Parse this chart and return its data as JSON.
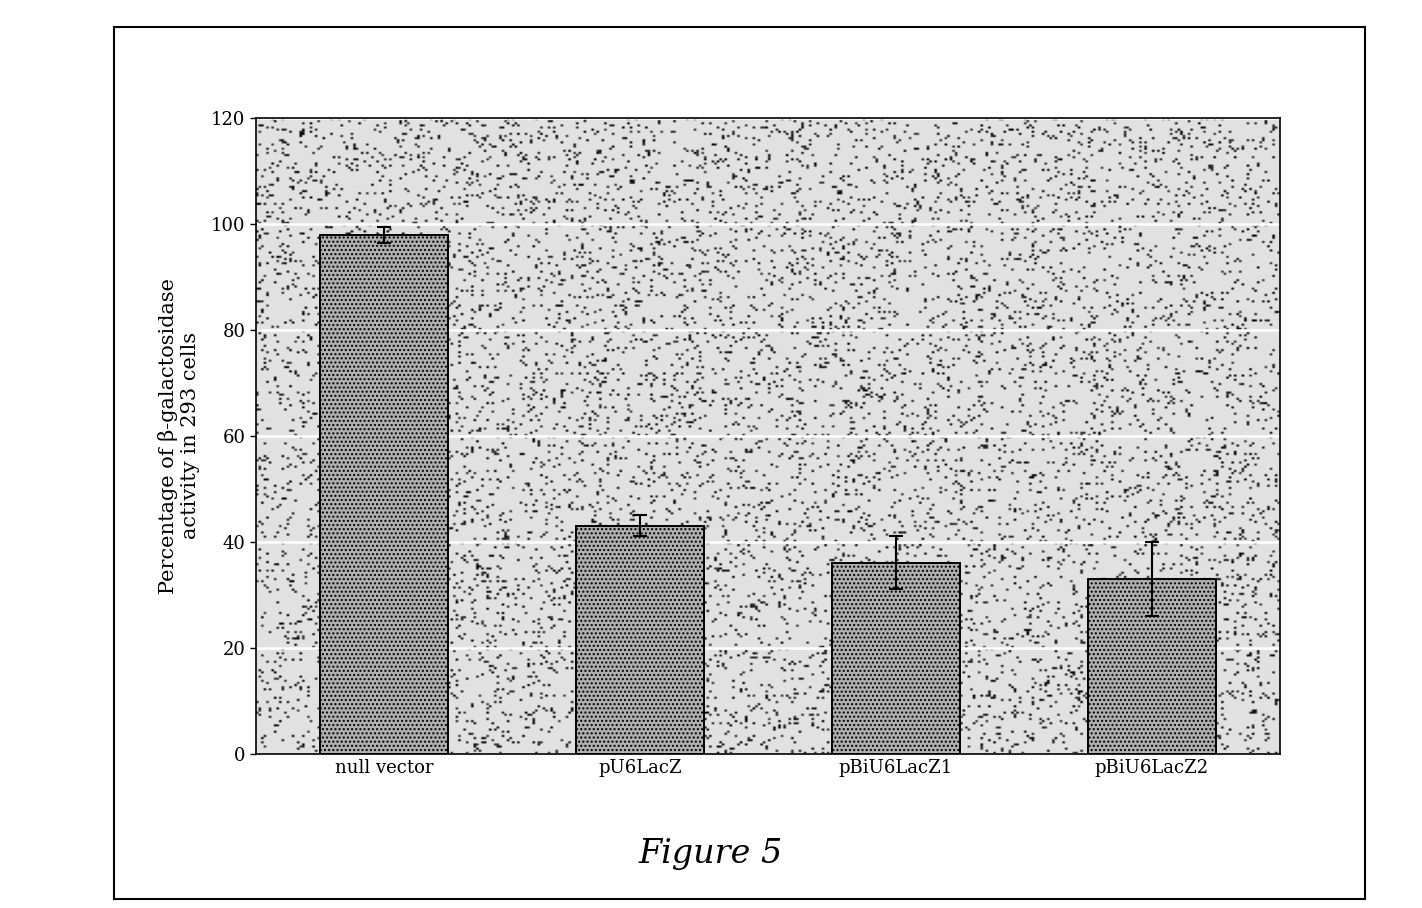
{
  "categories": [
    "null vector",
    "pU6LacZ",
    "pBiU6LacZ1",
    "pBiU6LacZ2"
  ],
  "values": [
    98,
    43,
    36,
    33
  ],
  "errors": [
    1.5,
    2.0,
    5.0,
    7.0
  ],
  "bar_color": "#b0b0b0",
  "bar_width": 0.5,
  "ylabel_line1": "Percentage of β-galactosidase",
  "ylabel_line2": "activity in 293 cells",
  "ylim": [
    0,
    120
  ],
  "yticks": [
    0,
    20,
    40,
    60,
    80,
    100,
    120
  ],
  "figure_caption": "Figure 5",
  "background_color": "#ffffff",
  "grid_color": "#ffffff",
  "axis_fontsize": 15,
  "tick_fontsize": 13,
  "caption_fontsize": 24,
  "noise_seed": 42,
  "noise_alpha": 0.35
}
